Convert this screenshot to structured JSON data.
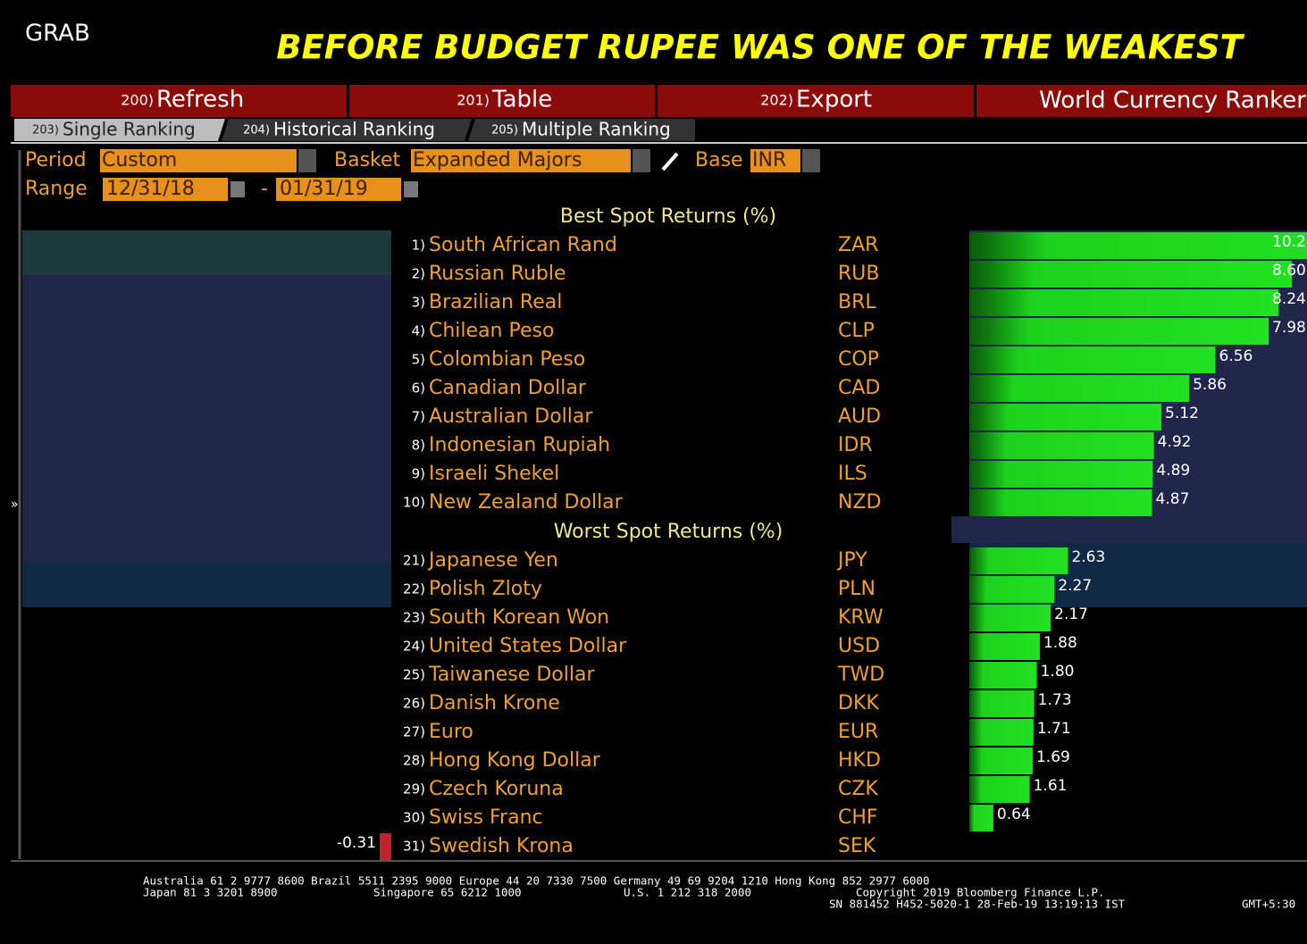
{
  "header": {
    "grab": "GRAB",
    "title": "BEFORE BUDGET RUPEE WAS ONE OF THE WEAKEST"
  },
  "menu": [
    {
      "num": "200)",
      "label": "Refresh"
    },
    {
      "num": "201)",
      "label": "Table"
    },
    {
      "num": "202)",
      "label": "Export"
    }
  ],
  "app_title": "World Currency Ranker",
  "tabs": [
    {
      "num": "203)",
      "label": "Single Ranking"
    },
    {
      "num": "204)",
      "label": "Historical Ranking"
    },
    {
      "num": "205)",
      "label": "Multiple Ranking"
    }
  ],
  "controls": {
    "period_label": "Period",
    "period": "Custom",
    "basket_label": "Basket",
    "basket": "Expanded Majors",
    "base_label": "Base",
    "base": "INR",
    "range_label": "Range",
    "range_start": "12/31/18",
    "range_sep": "-",
    "range_end": "01/31/19"
  },
  "best": {
    "heading": "Best Spot Returns (%)",
    "rows": [
      {
        "rank": "1)",
        "name": "South African Rand",
        "code": "ZAR",
        "value": 10.2,
        "value_label": "10.2"
      },
      {
        "rank": "2)",
        "name": "Russian Ruble",
        "code": "RUB",
        "value": 8.6,
        "value_label": "8.60"
      },
      {
        "rank": "3)",
        "name": "Brazilian Real",
        "code": "BRL",
        "value": 8.24,
        "value_label": "8.24"
      },
      {
        "rank": "4)",
        "name": "Chilean Peso",
        "code": "CLP",
        "value": 7.98,
        "value_label": "7.98"
      },
      {
        "rank": "5)",
        "name": "Colombian Peso",
        "code": "COP",
        "value": 6.56,
        "value_label": "6.56"
      },
      {
        "rank": "6)",
        "name": "Canadian Dollar",
        "code": "CAD",
        "value": 5.86,
        "value_label": "5.86"
      },
      {
        "rank": "7)",
        "name": "Australian Dollar",
        "code": "AUD",
        "value": 5.12,
        "value_label": "5.12"
      },
      {
        "rank": "8)",
        "name": "Indonesian Rupiah",
        "code": "IDR",
        "value": 4.92,
        "value_label": "4.92"
      },
      {
        "rank": "9)",
        "name": "Israeli Shekel",
        "code": "ILS",
        "value": 4.89,
        "value_label": "4.89"
      },
      {
        "rank": "10)",
        "name": "New Zealand Dollar",
        "code": "NZD",
        "value": 4.87,
        "value_label": "4.87"
      }
    ]
  },
  "worst": {
    "heading": "Worst Spot Returns (%)",
    "rows": [
      {
        "rank": "21)",
        "name": "Japanese Yen",
        "code": "JPY",
        "value": 2.63,
        "value_label": "2.63"
      },
      {
        "rank": "22)",
        "name": "Polish Zloty",
        "code": "PLN",
        "value": 2.27,
        "value_label": "2.27"
      },
      {
        "rank": "23)",
        "name": "South Korean Won",
        "code": "KRW",
        "value": 2.17,
        "value_label": "2.17"
      },
      {
        "rank": "24)",
        "name": "United States Dollar",
        "code": "USD",
        "value": 1.88,
        "value_label": "1.88"
      },
      {
        "rank": "25)",
        "name": "Taiwanese Dollar",
        "code": "TWD",
        "value": 1.8,
        "value_label": "1.80"
      },
      {
        "rank": "26)",
        "name": "Danish Krone",
        "code": "DKK",
        "value": 1.73,
        "value_label": "1.73"
      },
      {
        "rank": "27)",
        "name": "Euro",
        "code": "EUR",
        "value": 1.71,
        "value_label": "1.71"
      },
      {
        "rank": "28)",
        "name": "Hong Kong Dollar",
        "code": "HKD",
        "value": 1.69,
        "value_label": "1.69"
      },
      {
        "rank": "29)",
        "name": "Czech Koruna",
        "code": "CZK",
        "value": 1.61,
        "value_label": "1.61"
      },
      {
        "rank": "30)",
        "name": "Swiss Franc",
        "code": "CHF",
        "value": 0.64,
        "value_label": "0.64"
      },
      {
        "rank": "31)",
        "name": "Swedish Krona",
        "code": "SEK",
        "value": -0.31,
        "value_label": "-0.31"
      }
    ]
  },
  "footer": {
    "line1": "Australia 61 2 9777 8600 Brazil 5511 2395 9000 Europe 44 20 7330 7500 Germany 49 69 9204 1210 Hong Kong 852 2977 6000",
    "japan": "Japan 81 3 3201 8900",
    "singapore": "Singapore 65 6212 1000",
    "us": "U.S. 1 212 318 2000",
    "copyright": "Copyright 2019 Bloomberg Finance L.P.",
    "sn": "SN 881452 H452-5020-1 28-Feb-19 13:19:13 IST",
    "gmt": "GMT+5:30"
  }
}
